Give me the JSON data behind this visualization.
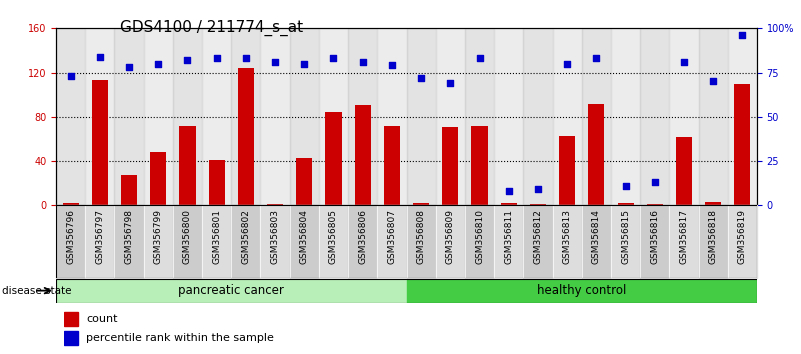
{
  "title": "GDS4100 / 211774_s_at",
  "samples": [
    "GSM356796",
    "GSM356797",
    "GSM356798",
    "GSM356799",
    "GSM356800",
    "GSM356801",
    "GSM356802",
    "GSM356803",
    "GSM356804",
    "GSM356805",
    "GSM356806",
    "GSM356807",
    "GSM356808",
    "GSM356809",
    "GSM356810",
    "GSM356811",
    "GSM356812",
    "GSM356813",
    "GSM356814",
    "GSM356815",
    "GSM356816",
    "GSM356817",
    "GSM356818",
    "GSM356819"
  ],
  "counts": [
    2,
    113,
    27,
    48,
    72,
    41,
    124,
    1,
    43,
    84,
    91,
    72,
    2,
    71,
    72,
    2,
    1,
    63,
    92,
    2,
    1,
    62,
    3,
    110
  ],
  "percentiles": [
    73,
    84,
    78,
    80,
    82,
    83,
    83,
    81,
    80,
    83,
    81,
    79,
    72,
    69,
    83,
    8,
    9,
    80,
    83,
    11,
    13,
    81,
    70,
    96
  ],
  "bar_color": "#cc0000",
  "dot_color": "#0000cc",
  "left_ylim": [
    0,
    160
  ],
  "right_ylim": [
    0,
    100
  ],
  "left_yticks": [
    0,
    40,
    80,
    120,
    160
  ],
  "right_yticks": [
    0,
    25,
    50,
    75,
    100
  ],
  "right_yticklabels": [
    "0",
    "25",
    "50",
    "75",
    "100%"
  ],
  "grid_lines": [
    40,
    80,
    120
  ],
  "n_cancer": 12,
  "n_total": 24,
  "pancreatic_label": "pancreatic cancer",
  "healthy_label": "healthy control",
  "disease_state_label": "disease state",
  "legend_bar_label": "count",
  "legend_dot_label": "percentile rank within the sample",
  "cancer_band_color": "#b8eeb8",
  "healthy_band_color": "#44cc44",
  "strip_even_color": "#cccccc",
  "strip_odd_color": "#dddddd",
  "title_fontsize": 11,
  "tick_fontsize": 7,
  "legend_fontsize": 8
}
